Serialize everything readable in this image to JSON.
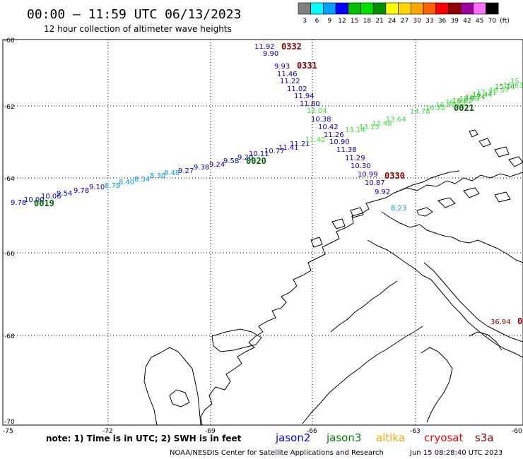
{
  "header": {
    "title": "00:00 – 11:59 UTC 06/13/2023",
    "subtitle": "12 hour collection of altimeter wave heights"
  },
  "legend": {
    "labels": [
      "3",
      "6",
      "9",
      "12",
      "15",
      "18",
      "21",
      "24",
      "27",
      "30",
      "33",
      "36",
      "39",
      "42",
      "45",
      "70"
    ],
    "unit": "(ft)",
    "colors": [
      "#808080",
      "#00ffff",
      "#00a0ff",
      "#0000ff",
      "#00c000",
      "#00e000",
      "#009000",
      "#ffff00",
      "#ffd700",
      "#ffa500",
      "#ff6000",
      "#ff0000",
      "#900000",
      "#a000a0",
      "#ff70ff",
      "#000000"
    ]
  },
  "axes": {
    "lat_labels": [
      "-60",
      "-62",
      "-64",
      "-66",
      "-68",
      "-70"
    ],
    "lon_labels": [
      "-75",
      "-72",
      "-69",
      "-66",
      "-63",
      "-60"
    ]
  },
  "tracks": [
    {
      "id": "jason2-0332-0331",
      "color": "#0000c0",
      "labels": [
        {
          "t": "11.92"
        },
        {
          "t": "9.90"
        },
        {
          "t": "9.93"
        },
        {
          "t": "11.46"
        },
        {
          "t": "11.22"
        },
        {
          "t": "11.02"
        },
        {
          "t": "11.94"
        },
        {
          "t": "11.80"
        },
        {
          "t": "10.38"
        },
        {
          "t": "10.42"
        },
        {
          "t": "11.26"
        },
        {
          "t": "10.90"
        },
        {
          "t": "11.38"
        },
        {
          "t": "11.29"
        },
        {
          "t": "10.30"
        },
        {
          "t": "10.99"
        },
        {
          "t": "10.87"
        },
        {
          "t": "9.92"
        }
      ]
    },
    {
      "id": "jason3-0019-0020",
      "color": "#0000c0",
      "labels": [
        {
          "t": "9.78"
        },
        {
          "t": "10.00"
        },
        {
          "t": "10.06"
        },
        {
          "t": "9.54"
        },
        {
          "t": "9.78"
        },
        {
          "t": "9.10"
        },
        {
          "t": "9.27"
        },
        {
          "t": "9.38"
        },
        {
          "t": "9.24"
        },
        {
          "t": "9.58"
        },
        {
          "t": "9.20"
        },
        {
          "t": "10.11"
        },
        {
          "t": "10.77"
        },
        {
          "t": "11.41"
        },
        {
          "t": "11.21"
        }
      ]
    },
    {
      "id": "jason3-mid",
      "color": "#00a0e0",
      "labels": [
        {
          "t": "8.78"
        },
        {
          "t": "8.40"
        },
        {
          "t": "8.34"
        },
        {
          "t": "8.30"
        },
        {
          "t": "8.48"
        }
      ]
    },
    {
      "id": "jason3-0021",
      "color": "#40e040",
      "labels": [
        {
          "t": "12.04"
        },
        {
          "t": "11.42"
        },
        {
          "t": "13.14"
        },
        {
          "t": "13.13"
        },
        {
          "t": "13.48"
        },
        {
          "t": "13.64"
        },
        {
          "t": "14.78"
        },
        {
          "t": "16.22"
        },
        {
          "t": "16.22"
        },
        {
          "t": "16.29"
        },
        {
          "t": "15.99"
        },
        {
          "t": "17.31"
        },
        {
          "t": "16.07"
        },
        {
          "t": "15.63"
        },
        {
          "t": "15.18"
        }
      ]
    },
    {
      "id": "jason3-0021-b",
      "color": "#20c020",
      "labels": [
        {
          "t": "16.62"
        },
        {
          "t": "16.74"
        },
        {
          "t": "16.44"
        },
        {
          "t": "15.14"
        }
      ]
    }
  ],
  "time_markers": [
    {
      "t": "0332",
      "color": "#8b0000"
    },
    {
      "t": "0331",
      "color": "#8b0000"
    },
    {
      "t": "0330",
      "color": "#8b0000"
    },
    {
      "t": "0019",
      "color": "#006400"
    },
    {
      "t": "0020",
      "color": "#006400"
    },
    {
      "t": "0021",
      "color": "#006400"
    }
  ],
  "cryosat_point": {
    "value": "36.94",
    "marker": "0",
    "color": "#8b0000"
  },
  "coastal_label": {
    "t": "8.23",
    "color": "#00a0e0"
  },
  "footer": {
    "note": "note:  1) Time is in UTC;  2) SWH is in feet",
    "satellites": [
      {
        "name": "jason2",
        "color": "#0000ff"
      },
      {
        "name": "jason3",
        "color": "#008000"
      },
      {
        "name": "altika",
        "color": "#ffa500"
      },
      {
        "name": "cryosat",
        "color": "#ff0000"
      },
      {
        "name": "s3a",
        "color": "#8b0000"
      }
    ],
    "credit": "NOAA/NESDIS Center for Satellite Applications and Research",
    "timestamp": "Jun 15 08:28:40 UTC 2023"
  }
}
